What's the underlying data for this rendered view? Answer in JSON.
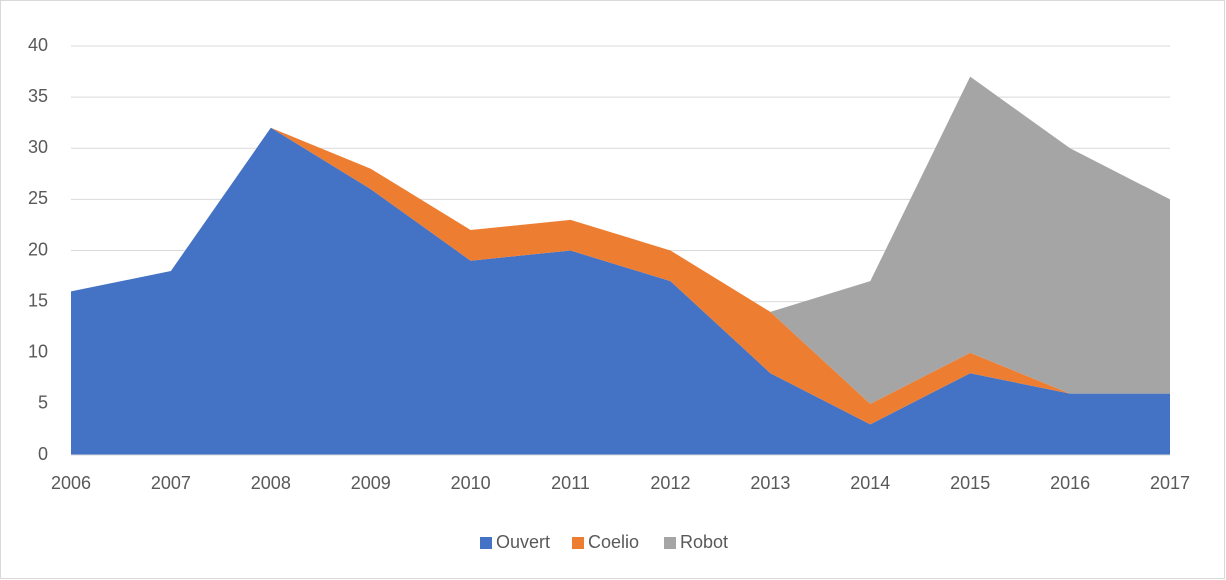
{
  "chart_data": {
    "type": "area",
    "stacked": true,
    "categories": [
      "2006",
      "2007",
      "2008",
      "2009",
      "2010",
      "2011",
      "2012",
      "2013",
      "2014",
      "2015",
      "2016",
      "2017"
    ],
    "series": [
      {
        "name": "Ouvert",
        "color": "#4472c4",
        "values": [
          16,
          18,
          32,
          26,
          19,
          20,
          17,
          8,
          3,
          8,
          6,
          6
        ]
      },
      {
        "name": "Coelio",
        "color": "#ed7d31",
        "values": [
          0,
          0,
          0,
          2,
          3,
          3,
          3,
          6,
          2,
          2,
          0,
          0
        ]
      },
      {
        "name": "Robot",
        "color": "#a5a5a5",
        "values": [
          0,
          0,
          0,
          0,
          0,
          0,
          0,
          0,
          12,
          27,
          24,
          19
        ]
      }
    ],
    "ylim": [
      0,
      40
    ],
    "yticks": [
      0,
      5,
      10,
      15,
      20,
      25,
      30,
      35,
      40
    ],
    "grid": true,
    "legend": "bottom"
  }
}
